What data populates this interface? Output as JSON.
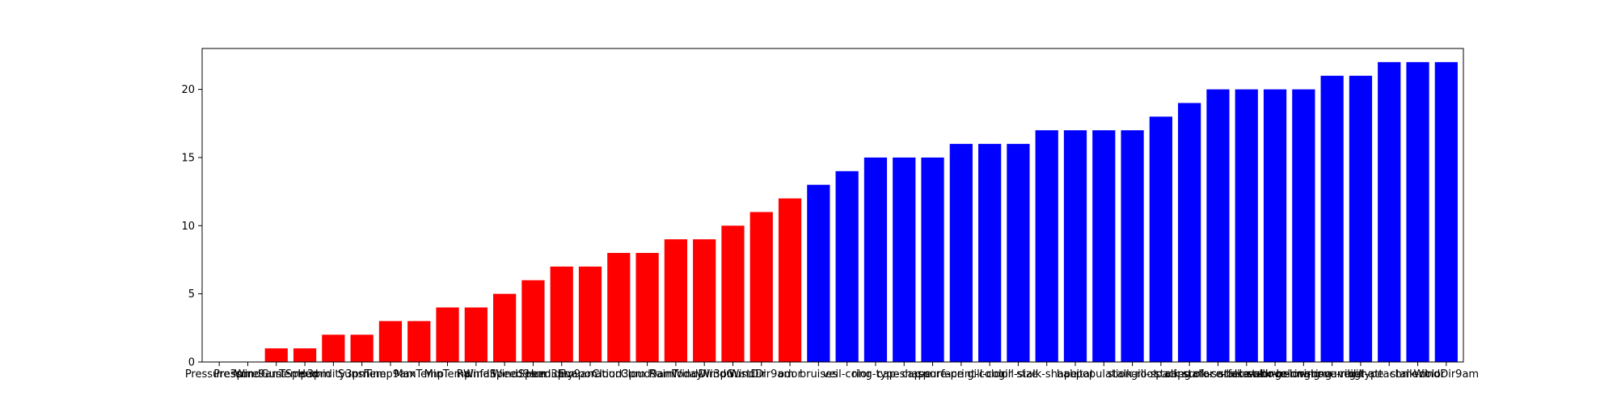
{
  "chart_data": {
    "type": "bar",
    "title": "",
    "xlabel": "",
    "ylabel": "",
    "ylim": [
      0,
      23
    ],
    "yticks": [
      0,
      5,
      10,
      15,
      20
    ],
    "grid": false,
    "legend": "none",
    "categories": [
      "Pressure3pm",
      "Pressure9am",
      "WindGustSpeed",
      "Temp3pm",
      "Humidity3pm",
      "Sunshine",
      "Temp9am",
      "MaxTemp",
      "MinTemp",
      "Rainfall",
      "WindSpeed9am",
      "WindSpeed3pm",
      "Humidity9am",
      "Evaporation",
      "Cloud3pm",
      "Cloud9am",
      "RainToday",
      "WindDir3pm",
      "WindGustDir",
      "WindDir9am",
      "odor",
      "bruises",
      "veil-color",
      "ring-type",
      "cap-shape",
      "cap-surface",
      "spore-print-color",
      "gill-color",
      "gill-size",
      "stalk-shape",
      "habitat",
      "population",
      "stalk-root",
      "gill-spacing",
      "cap-color",
      "stalk-surface-below-ring",
      "stalk-surface-above-ring",
      "stalk-color-below-ring",
      "stalk-color-above-ring",
      "ring-number",
      "veil-type",
      "gill-attachment",
      "stalk-color",
      "WindDir9am"
    ],
    "values": [
      0,
      0,
      1,
      1,
      2,
      2,
      3,
      3,
      4,
      4,
      5,
      6,
      7,
      7,
      8,
      8,
      9,
      9,
      10,
      11,
      12,
      13,
      14,
      15,
      15,
      15,
      16,
      16,
      16,
      17,
      17,
      17,
      17,
      18,
      19,
      20,
      20,
      20,
      20,
      21,
      21,
      22,
      22,
      22
    ],
    "color_split_index": 21,
    "colors": {
      "first": "#ff0000",
      "second": "#0000ff"
    }
  }
}
